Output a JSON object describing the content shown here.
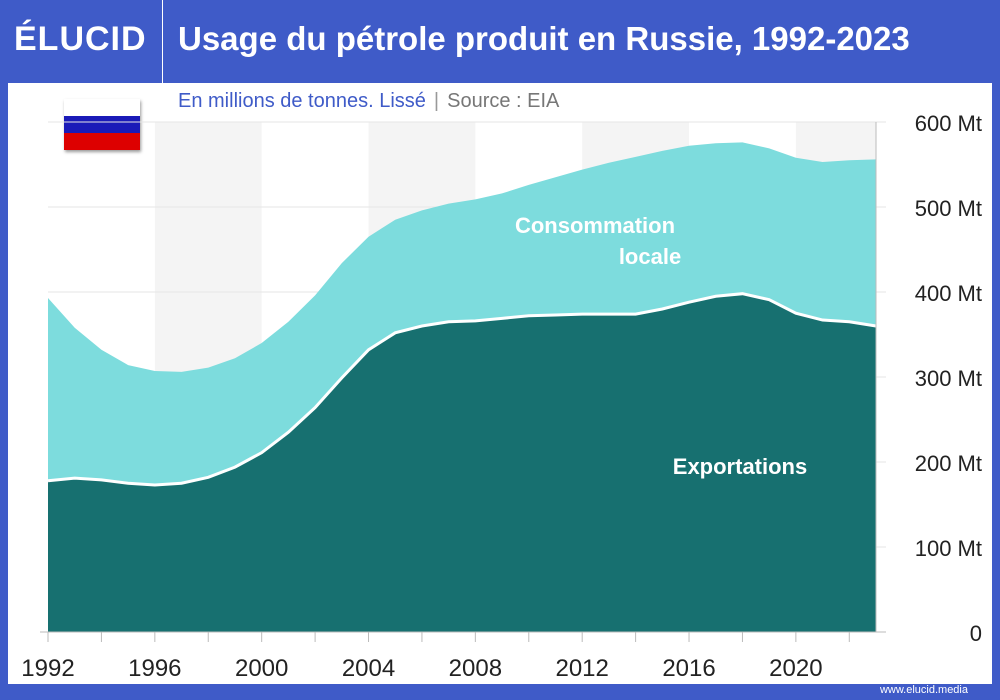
{
  "header": {
    "logo": "ÉLUCID",
    "title": "Usage du pétrole produit en Russie, 1992-2023"
  },
  "subtitle": {
    "text": "En millions de tonnes. Lissé",
    "separator": "|",
    "source": "Source : EIA"
  },
  "flag": {
    "colors": [
      "#ffffff",
      "#1a1ab8",
      "#dd0000"
    ]
  },
  "footer": {
    "url": "www.elucid.media"
  },
  "colors": {
    "brand": "#3f5bc8",
    "exports": "#177070",
    "local": "#7ddcdd"
  },
  "chart_data": {
    "type": "area",
    "stacked": true,
    "x": [
      1992,
      1993,
      1994,
      1995,
      1996,
      1997,
      1998,
      1999,
      2000,
      2001,
      2002,
      2003,
      2004,
      2005,
      2006,
      2007,
      2008,
      2009,
      2010,
      2011,
      2012,
      2013,
      2014,
      2015,
      2016,
      2017,
      2018,
      2019,
      2020,
      2021,
      2022,
      2023
    ],
    "series": [
      {
        "name": "Exportations",
        "values": [
          178,
          181,
          179,
          175,
          173,
          175,
          182,
          194,
          211,
          235,
          264,
          299,
          332,
          352,
          360,
          365,
          366,
          369,
          372,
          373,
          374,
          374,
          374,
          380,
          388,
          395,
          398,
          391,
          375,
          367,
          365,
          360
        ]
      },
      {
        "name": "Consommation locale",
        "values": [
          215,
          177,
          153,
          139,
          134,
          131,
          129,
          128,
          129,
          130,
          132,
          135,
          133,
          133,
          136,
          139,
          143,
          147,
          154,
          162,
          170,
          178,
          185,
          186,
          184,
          180,
          178,
          178,
          183,
          186,
          190,
          196
        ]
      }
    ],
    "labels": {
      "exports": "Exportations",
      "local_line1": "Consommation",
      "local_line2": "locale"
    },
    "xticks": [
      "1992",
      "1996",
      "2000",
      "2004",
      "2008",
      "2012",
      "2016",
      "2020"
    ],
    "yticks": [
      "0",
      "100 Mt",
      "200 Mt",
      "300 Mt",
      "400 Mt",
      "500 Mt",
      "600 Mt"
    ],
    "ylim": [
      0,
      600
    ],
    "grid": true,
    "axis_position": "right"
  }
}
